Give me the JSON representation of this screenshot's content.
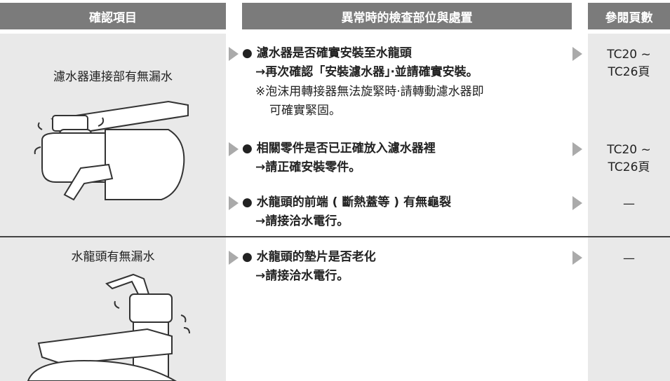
{
  "table": {
    "header": [
      "確認項目",
      "異常時的檢查部位與處置",
      "參閱頁數"
    ],
    "rows": [
      {
        "check": "濾水器連接部有無漏水",
        "items": [
          {
            "question": "● 濾水器是否確實安裝至水龍頭",
            "action": "→再次確認「安裝濾水器」‧並請確實安裝。",
            "note": [
              "※泡沫用轉接器無法旋緊時‧請轉動濾水器即",
              "可確實緊固。"
            ],
            "reference": [
              "TC20 ~",
              "TC26頁"
            ]
          },
          {
            "question": "● 相關零件是否已正確放入濾水器裡",
            "action": "→請正確安裝零件。",
            "reference": [
              "TC20 ~",
              "TC26頁"
            ]
          },
          {
            "question": "● 水龍頭的前端 ( 斷熱蓋等 ) 有無龜裂",
            "action": "→請接洽水電行。",
            "reference": [
              "—"
            ]
          }
        ]
      },
      {
        "check": "水龍頭有無漏水",
        "items": [
          {
            "question": "● 水龍頭的墊片是否老化",
            "action": "→請接洽水電行。",
            "reference": [
              "—"
            ]
          }
        ]
      }
    ]
  }
}
